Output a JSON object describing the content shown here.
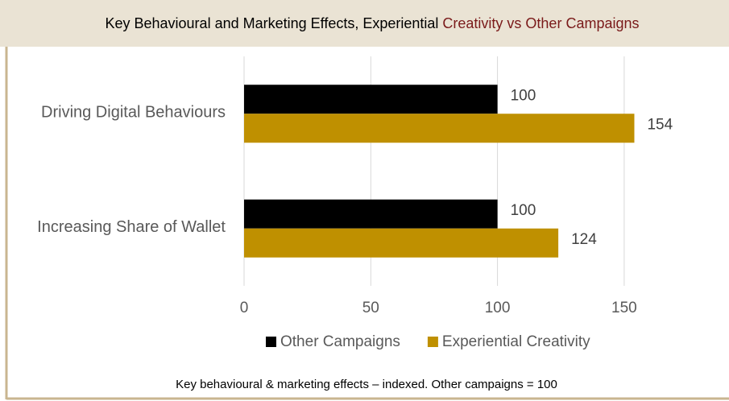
{
  "chart_data": {
    "type": "hbar",
    "title": [
      "Key Behavioural and Marketing Effects, Experiential",
      "Creativity vs Other Campaigns"
    ],
    "categories": [
      "Driving Digital Behaviours",
      "Increasing Share of Wallet"
    ],
    "series": [
      {
        "name": "Other Campaigns",
        "color": "#000000",
        "values": [
          100,
          100
        ]
      },
      {
        "name": "Experiential Creativity",
        "color": "#bf9000",
        "values": [
          154,
          124
        ]
      }
    ],
    "xlim": [
      0,
      160
    ],
    "xticks": [
      0,
      50,
      100,
      150
    ],
    "grid": true,
    "legend": "bottom",
    "footnote": "Key behavioural & marketing effects – indexed. Other campaigns = 100"
  }
}
